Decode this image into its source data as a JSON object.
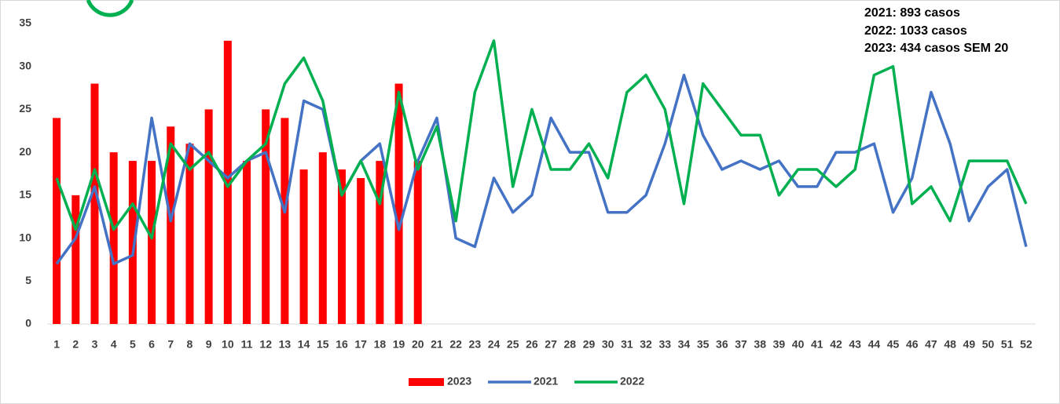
{
  "chart_data": {
    "type": "combo",
    "annotations": [
      "2021: 893 casos",
      "2022: 1033 casos",
      "2023: 434 casos SEM 20"
    ],
    "categories": [
      "1",
      "2",
      "3",
      "4",
      "5",
      "6",
      "7",
      "8",
      "9",
      "10",
      "11",
      "12",
      "13",
      "14",
      "15",
      "16",
      "17",
      "18",
      "19",
      "20",
      "21",
      "22",
      "23",
      "24",
      "25",
      "26",
      "27",
      "28",
      "29",
      "30",
      "31",
      "32",
      "33",
      "34",
      "35",
      "36",
      "37",
      "38",
      "39",
      "40",
      "41",
      "42",
      "43",
      "44",
      "45",
      "46",
      "47",
      "48",
      "49",
      "50",
      "51",
      "52"
    ],
    "series": [
      {
        "name": "2023",
        "type": "bar",
        "color": "#ff0000",
        "values": [
          24,
          15,
          28,
          20,
          19,
          19,
          23,
          21,
          25,
          33,
          19,
          25,
          24,
          18,
          20,
          18,
          17,
          19,
          28,
          19,
          null,
          null,
          null,
          null,
          null,
          null,
          null,
          null,
          null,
          null,
          null,
          null,
          null,
          null,
          null,
          null,
          null,
          null,
          null,
          null,
          null,
          null,
          null,
          null,
          null,
          null,
          null,
          null,
          null,
          null,
          null,
          null
        ]
      },
      {
        "name": "2021",
        "type": "line",
        "color": "#4472c4",
        "values": [
          7,
          10,
          16,
          7,
          8,
          24,
          12,
          21,
          19,
          17,
          19,
          20,
          13,
          26,
          25,
          15,
          19,
          21,
          11,
          19,
          24,
          10,
          9,
          17,
          13,
          15,
          24,
          20,
          20,
          13,
          13,
          15,
          21,
          29,
          22,
          18,
          19,
          18,
          19,
          16,
          16,
          20,
          20,
          21,
          13,
          17,
          27,
          21,
          12,
          16,
          18,
          9
        ]
      },
      {
        "name": "2022",
        "type": "line",
        "color": "#00b050",
        "values": [
          17,
          11,
          18,
          11,
          14,
          10,
          21,
          18,
          20,
          16,
          19,
          21,
          28,
          31,
          26,
          15,
          19,
          14,
          27,
          18,
          23,
          12,
          27,
          33,
          16,
          25,
          18,
          18,
          21,
          17,
          27,
          29,
          25,
          14,
          28,
          25,
          22,
          22,
          15,
          18,
          18,
          16,
          18,
          29,
          30,
          14,
          16,
          12,
          19,
          19,
          19,
          14
        ]
      }
    ],
    "ylim": [
      0,
      35
    ],
    "yticks": [
      0,
      5,
      10,
      15,
      20,
      25,
      30,
      35
    ],
    "grid": false,
    "legend": "bottom"
  }
}
